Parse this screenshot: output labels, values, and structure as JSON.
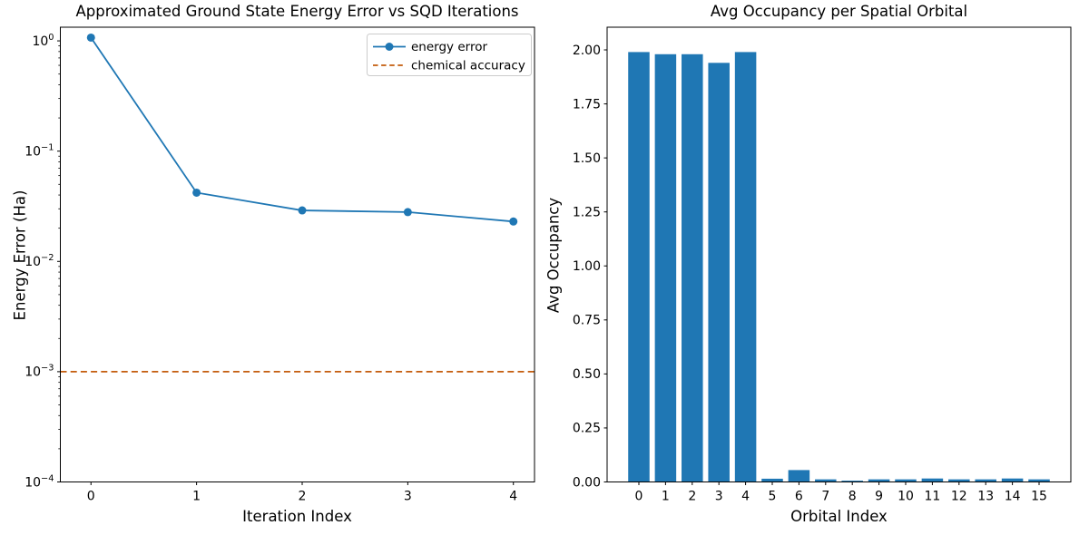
{
  "figure": {
    "background": "#ffffff",
    "text_color": "#000000",
    "spine_color": "#000000",
    "legend_border_color": "#cccccc"
  },
  "chart_data": [
    {
      "id": "energy-error-vs-iterations",
      "type": "line",
      "title": "Approximated Ground State Energy Error vs SQD Iterations",
      "xlabel": "Iteration Index",
      "ylabel": "Energy Error (Ha)",
      "yscale": "log",
      "xlim": [
        -0.29,
        4.2
      ],
      "ylim": [
        0.0001,
        1.33
      ],
      "grid": false,
      "series": [
        {
          "name": "energy error",
          "type": "line",
          "marker": "circle",
          "linestyle": "solid",
          "color": "#1f77b4",
          "x": [
            0,
            1,
            2,
            3,
            4
          ],
          "y": [
            1.07,
            0.042,
            0.029,
            0.028,
            0.023
          ]
        },
        {
          "name": "chemical accuracy",
          "type": "hline",
          "linestyle": "dashed",
          "color": "#c45c0d",
          "y": 0.001
        }
      ],
      "xticks": {
        "values": [
          0,
          1,
          2,
          3,
          4
        ],
        "labels": [
          "0",
          "1",
          "2",
          "3",
          "4"
        ]
      },
      "yticks": {
        "values": [
          1,
          0.1,
          0.01,
          0.001,
          0.0001
        ],
        "label_base": "10",
        "label_exponents": [
          "0",
          "−1",
          "−2",
          "−3",
          "−4"
        ]
      },
      "legend": {
        "position": "upper right",
        "entries": [
          "energy error",
          "chemical accuracy"
        ]
      }
    },
    {
      "id": "avg-occupancy-per-orbital",
      "type": "bar",
      "title": "Avg Occupancy per Spatial Orbital",
      "xlabel": "Orbital Index",
      "ylabel": "Avg Occupancy",
      "bar_color": "#1f77b4",
      "xlim": [
        -1.19,
        16.19
      ],
      "ylim": [
        0,
        2.105
      ],
      "grid": false,
      "categories": [
        "0",
        "1",
        "2",
        "3",
        "4",
        "5",
        "6",
        "7",
        "8",
        "9",
        "10",
        "11",
        "12",
        "13",
        "14",
        "15"
      ],
      "values": [
        1.99,
        1.98,
        1.98,
        1.94,
        1.99,
        0.015,
        0.055,
        0.012,
        0.006,
        0.012,
        0.012,
        0.016,
        0.012,
        0.012,
        0.016,
        0.012
      ],
      "yticks": {
        "values": [
          0,
          0.25,
          0.5,
          0.75,
          1.0,
          1.25,
          1.5,
          1.75,
          2.0
        ],
        "labels": [
          "0.00",
          "0.25",
          "0.50",
          "0.75",
          "1.00",
          "1.25",
          "1.50",
          "1.75",
          "2.00"
        ]
      }
    }
  ]
}
